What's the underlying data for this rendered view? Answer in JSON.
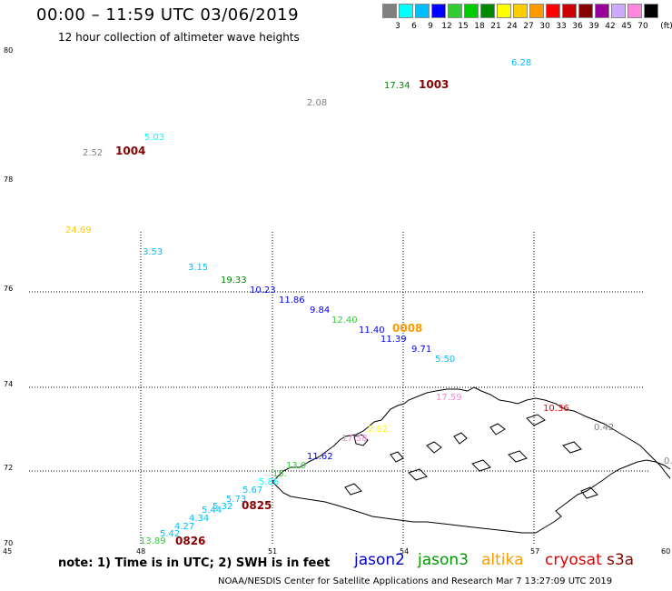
{
  "header": {
    "title": "00:00 – 11:59 UTC 03/06/2019",
    "subtitle": "12 hour collection of altimeter wave heights"
  },
  "color_legend": {
    "colors": [
      "#808080",
      "#00ffff",
      "#00bfff",
      "#0000ff",
      "#33cc33",
      "#00cc00",
      "#008800",
      "#ffff00",
      "#ffcc00",
      "#ff9900",
      "#ff0000",
      "#cc0000",
      "#880000",
      "#990099",
      "#ccaaff",
      "#ff88dd",
      "#000000"
    ],
    "labels": [
      "",
      "3",
      "6",
      "9",
      "12",
      "15",
      "18",
      "21",
      "24",
      "27",
      "30",
      "33",
      "36",
      "39",
      "42",
      "45",
      "70",
      "(ft)"
    ]
  },
  "axes": {
    "lat_labels": [
      "80",
      "78",
      "76",
      "74",
      "72",
      "70"
    ],
    "lon_labels": [
      "45",
      "48",
      "51",
      "54",
      "57",
      "60"
    ]
  },
  "observations": [
    {
      "text": "6.28",
      "color": "#00bfff"
    },
    {
      "text": "17.34",
      "color": "#008800"
    },
    {
      "text": "1003",
      "color": "#880000"
    },
    {
      "text": "2.08",
      "color": "#808080"
    },
    {
      "text": "5.03",
      "color": "#00ffff"
    },
    {
      "text": "2.52",
      "color": "#808080"
    },
    {
      "text": "1004",
      "color": "#880000"
    },
    {
      "text": "24.69",
      "color": "#ffcc00"
    },
    {
      "text": "3.53",
      "color": "#00bfff"
    },
    {
      "text": "3.15",
      "color": "#00bfff"
    },
    {
      "text": "19.33",
      "color": "#008800"
    },
    {
      "text": "10.23",
      "color": "#0000ff"
    },
    {
      "text": "11.86",
      "color": "#0000ff"
    },
    {
      "text": "9.84",
      "color": "#0000ff"
    },
    {
      "text": "12.40",
      "color": "#33cc33"
    },
    {
      "text": "11.40",
      "color": "#0000ff"
    },
    {
      "text": "0008",
      "color": "#ff9900"
    },
    {
      "text": "11.39",
      "color": "#0000ff"
    },
    {
      "text": "9.71",
      "color": "#0000ff"
    },
    {
      "text": "5.50",
      "color": "#00bfff"
    },
    {
      "text": "17.59",
      "color": "#ff88dd"
    },
    {
      "text": "10.36",
      "color": "#ff0000"
    },
    {
      "text": "0.42",
      "color": "#808080"
    },
    {
      "text": "0.",
      "color": "#808080"
    },
    {
      "text": "2.62",
      "color": "#ffff00"
    },
    {
      "text": "17.58",
      "color": "#ff88dd"
    },
    {
      "text": "11.62",
      "color": "#0000ff"
    },
    {
      "text": "13.0",
      "color": "#33cc33"
    },
    {
      "text": "15.",
      "color": "#33cc33"
    },
    {
      "text": "5.86",
      "color": "#00ffff"
    },
    {
      "text": "5.67",
      "color": "#00bfff"
    },
    {
      "text": "5.73",
      "color": "#00bfff"
    },
    {
      "text": "5.32",
      "color": "#00bfff"
    },
    {
      "text": "5.44",
      "color": "#00bfff"
    },
    {
      "text": "0825",
      "color": "#880000"
    },
    {
      "text": "4.34",
      "color": "#00bfff"
    },
    {
      "text": "4.27",
      "color": "#00bfff"
    },
    {
      "text": "5.42",
      "color": "#00bfff"
    },
    {
      "text": "13.89",
      "color": "#33cc33"
    },
    {
      "text": "0826",
      "color": "#880000"
    }
  ],
  "footer": {
    "note": "note:  1) Time is in UTC;  2) SWH is in feet",
    "missions": [
      {
        "name": "jason2",
        "color": "#0000cc"
      },
      {
        "name": "jason3",
        "color": "#009900"
      },
      {
        "name": "altika",
        "color": "#ff9900"
      },
      {
        "name": "cryosat",
        "color": "#dd0000"
      },
      {
        "name": "s3a",
        "color": "#880000"
      }
    ],
    "credit": "NOAA/NESDIS Center for Satellite Applications and Research    Mar  7 13:27:09 UTC 2019"
  }
}
